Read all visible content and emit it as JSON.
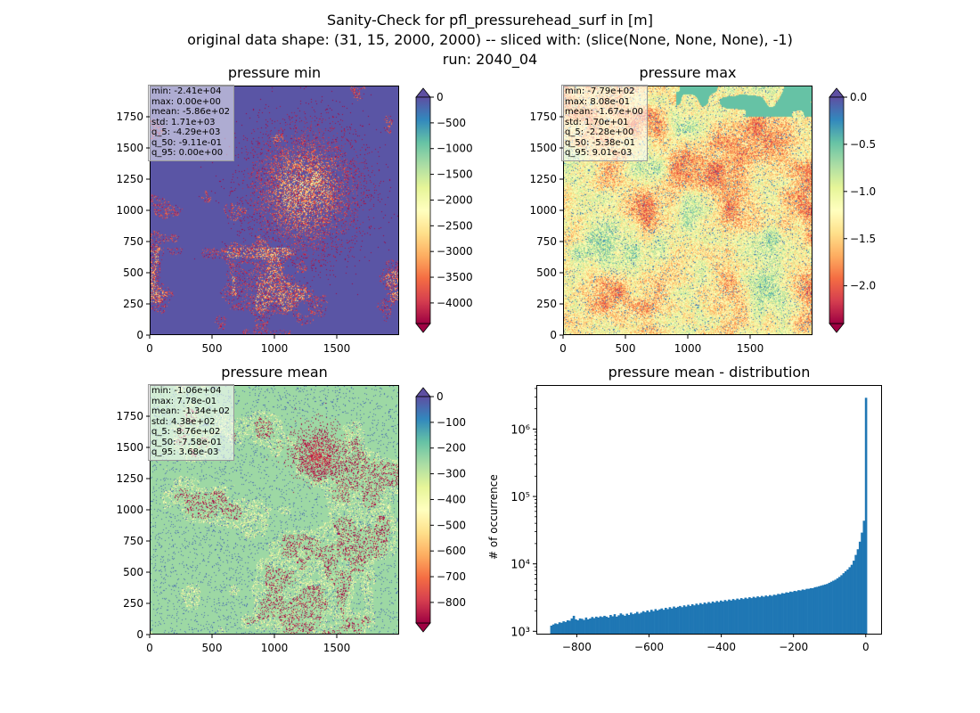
{
  "header": {
    "line1": "Sanity-Check for pfl_pressurehead_surf in [m]",
    "line2": "original data shape: (31, 15, 2000, 2000) -- sliced with: (slice(None, None, None), -1)",
    "line3": "run: 2040_04"
  },
  "chart_data": [
    {
      "type": "heatmap",
      "title": "pressure min",
      "xlim": [
        0,
        2000
      ],
      "ylim": [
        0,
        2000
      ],
      "xticks": [
        "0",
        "500",
        "1000",
        "1500"
      ],
      "yticks": [
        "0",
        "250",
        "500",
        "750",
        "1000",
        "1250",
        "1500",
        "1750"
      ],
      "colormap": "Spectral",
      "colorbar": {
        "min": -4400,
        "max": 0,
        "extend": "both",
        "ticks": [
          "0",
          "−500",
          "−1000",
          "−1500",
          "−2000",
          "−2500",
          "−3000",
          "−3500",
          "−4000"
        ],
        "tick_values": [
          0,
          -500,
          -1000,
          -1500,
          -2000,
          -2500,
          -3000,
          -3500,
          -4000
        ]
      },
      "stats": [
        "min: -2.41e+04",
        "max: 0.00e+00",
        "mean: -5.86e+02",
        "std: 1.71e+03",
        "q_5: -4.29e+03",
        "q_50: -9.11e-01",
        "q_95: 0.00e+00"
      ],
      "background_level": 0.02
    },
    {
      "type": "heatmap",
      "title": "pressure max",
      "xlim": [
        0,
        2000
      ],
      "ylim": [
        0,
        2000
      ],
      "xticks": [
        "0",
        "500",
        "1000",
        "1500"
      ],
      "yticks": [
        "0",
        "250",
        "500",
        "750",
        "1000",
        "1250",
        "1500",
        "1750"
      ],
      "colormap": "Spectral",
      "colorbar": {
        "min": -2.4,
        "max": 0,
        "extend": "both",
        "ticks": [
          "0.0",
          "−0.5",
          "−1.0",
          "−1.5",
          "−2.0"
        ],
        "tick_values": [
          0,
          -0.5,
          -1.0,
          -1.5,
          -2.0
        ]
      },
      "stats": [
        "min: -7.79e+02",
        "max: 8.08e-01",
        "mean: -1.67e+00",
        "std: 1.70e+01",
        "q_5: -2.28e+00",
        "q_50: -5.38e-01",
        "q_95: 9.01e-03"
      ],
      "background_level": 0.78
    },
    {
      "type": "heatmap",
      "title": "pressure mean",
      "xlim": [
        0,
        2000
      ],
      "ylim": [
        0,
        2000
      ],
      "xticks": [
        "0",
        "500",
        "1000",
        "1500"
      ],
      "yticks": [
        "0",
        "250",
        "500",
        "750",
        "1000",
        "1250",
        "1500",
        "1750"
      ],
      "colormap": "Spectral",
      "colorbar": {
        "min": -880,
        "max": 0,
        "extend": "both",
        "ticks": [
          "0",
          "−100",
          "−200",
          "−300",
          "−400",
          "−500",
          "−600",
          "−700",
          "−800"
        ],
        "tick_values": [
          0,
          -100,
          -200,
          -300,
          -400,
          -500,
          -600,
          -700,
          -800
        ]
      },
      "stats": [
        "min: -1.06e+04",
        "max: 7.78e-01",
        "mean: -1.34e+02",
        "std: 4.38e+02",
        "q_5: -8.76e+02",
        "q_50: -7.58e-01",
        "q_95: 3.68e-03"
      ],
      "background_level": 0.72
    },
    {
      "type": "bar",
      "title": "pressure mean - distribution",
      "ylabel": "# of occurrence",
      "xlabel": "",
      "yscale": "log",
      "xlim": [
        -912,
        40
      ],
      "ylim": [
        950,
        4500000
      ],
      "xticks": [
        "−800",
        "−600",
        "−400",
        "−200",
        "0"
      ],
      "xtick_values": [
        -800,
        -600,
        -400,
        -200,
        0
      ],
      "yticks": [
        "10³",
        "10⁴",
        "10⁵",
        "10⁶"
      ],
      "ytick_values": [
        1000,
        10000,
        100000,
        1000000
      ],
      "bin_range": [
        -876,
        0.78
      ],
      "counts": [
        1250,
        1300,
        1350,
        1320,
        1400,
        1380,
        1450,
        1420,
        1500,
        1480,
        1600,
        1750,
        1550,
        1500,
        1600,
        1580,
        1520,
        1650,
        1550,
        1600,
        1680,
        1620,
        1700,
        1650,
        1720,
        1680,
        1750,
        1700,
        1650,
        1800,
        1720,
        1850,
        1700,
        1780,
        1900,
        1820,
        1750,
        1880,
        1800,
        1950,
        1850,
        1900,
        2000,
        1880,
        1950,
        2050,
        1980,
        2100,
        2000,
        2150,
        2050,
        2200,
        2100,
        2180,
        2250,
        2150,
        2300,
        2200,
        2350,
        2250,
        2400,
        2300,
        2380,
        2450,
        2350,
        2500,
        2400,
        2550,
        2450,
        2600,
        2500,
        2650,
        2550,
        2700,
        2600,
        2750,
        2650,
        2800,
        2700,
        2850,
        2750,
        2900,
        2800,
        2950,
        2850,
        3000,
        2900,
        3050,
        2950,
        3100,
        3000,
        3150,
        3050,
        3200,
        3100,
        3250,
        3150,
        3300,
        3200,
        3350,
        3250,
        3400,
        3300,
        3450,
        3350,
        3500,
        3400,
        3550,
        3450,
        3600,
        3550,
        3700,
        3650,
        3800,
        3750,
        3900,
        3850,
        4000,
        3950,
        4100,
        4050,
        4200,
        4150,
        4300,
        4250,
        4400,
        4400,
        4500,
        4500,
        4650,
        4700,
        4800,
        4900,
        5000,
        5100,
        5200,
        5400,
        5600,
        5800,
        6000,
        6300,
        6600,
        7000,
        7500,
        8000,
        8500,
        9200,
        10000,
        11500,
        14000,
        17000,
        22000,
        30000,
        45000,
        3000000
      ]
    }
  ]
}
